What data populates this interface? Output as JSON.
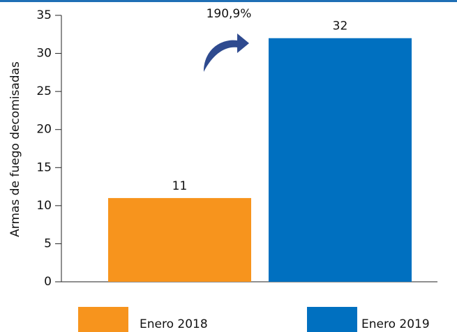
{
  "chart_data": {
    "type": "bar",
    "y_label": "Armas de fuego decomisadas",
    "annotation": "190,9%",
    "categories": [
      "Enero 2018",
      "Enero 2019"
    ],
    "values": [
      11,
      32
    ],
    "colors": [
      "#f7941d",
      "#0070c0"
    ],
    "ylim": [
      0,
      35
    ],
    "yticks": [
      0,
      5,
      10,
      15,
      20,
      25,
      30,
      35
    ],
    "grid": false,
    "legend": "bottom"
  }
}
